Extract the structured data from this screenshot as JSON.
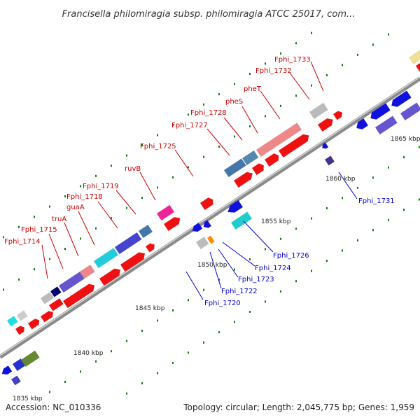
{
  "title": "Francisella philomiragia subsp. philomiragia ATCC 25017, com...",
  "footer": {
    "accession": "Accession: NC_010336",
    "topology": "Topology: circular; Length: 2,045,775 bp; Genes: 1,959"
  },
  "scale_labels": [
    "1835 kbp",
    "1840 kbp",
    "1845 kbp",
    "1850 kbp",
    "1855 kbp",
    "1860 kbp",
    "1865 kbp"
  ],
  "gene_labels_top": [
    "Fphi_1714",
    "Fphi_1715",
    "truA",
    "guaA",
    "Fphi_1718",
    "Fphi_1719",
    "ruvB",
    "Fphi_1725",
    "Fphi_1727",
    "Fphi_1728",
    "pheS",
    "pheT",
    "Fphi_1732",
    "Fphi_1733"
  ],
  "gene_labels_bottom": [
    "Fphi_1720",
    "Fphi_1722",
    "Fphi_1723",
    "Fphi_1724",
    "Fphi_1726",
    "Fphi_1731"
  ],
  "colors": {
    "forward_label": "#cc0000",
    "reverse_label": "#0000cc",
    "forward_gene": "#ee1111",
    "reverse_gene": "#1111dd",
    "backbone": "#888888",
    "tick": "#117711"
  }
}
